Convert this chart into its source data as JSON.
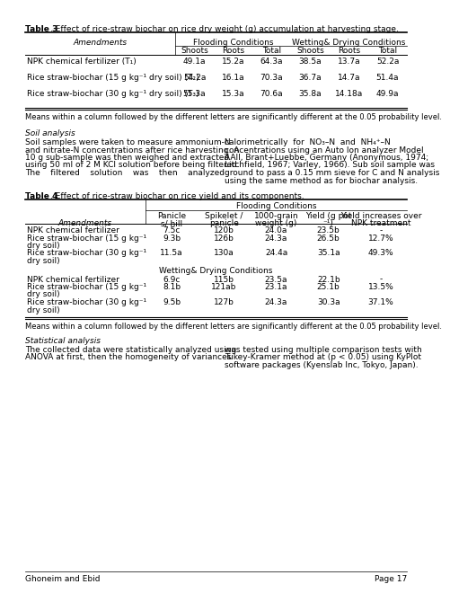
{
  "table3_title_bold": "Table 3",
  "table3_title_rest": ". Effect of rice-straw biochar on rice dry weight (g) accumulation at harvesting stage.",
  "table3_subheaders": [
    "Shoots",
    "Roots",
    "Total",
    "Shoots",
    "Roots",
    "Total"
  ],
  "table3_rows": [
    [
      "NPK chemical fertilizer (T₁)",
      "49.1a",
      "15.2a",
      "64.3a",
      "38.5a",
      "13.7a",
      "52.2a"
    ],
    [
      "Rice straw-biochar (15 g kg⁻¹ dry soil) (T₂)",
      "54.2a",
      "16.1a",
      "70.3a",
      "36.7a",
      "14.7a",
      "51.4a"
    ],
    [
      "Rice straw-biochar (30 g kg⁻¹ dry soil) (T₃)",
      "55.3a",
      "15.3a",
      "70.6a",
      "35.8a",
      "14.18a",
      "49.9a"
    ]
  ],
  "table3_note": "Means within a column followed by the different letters are significantly different at the 0.05 probability level.",
  "soil_analysis_title": "Soil analysis",
  "sa_left_lines": [
    "Soil samples were taken to measure ammonium-N",
    "and nitrate-N concentrations after rice harvesting. A",
    "10 g sub-sample was then weighed and extracted",
    "using 50 ml of 2 M KCl solution before being filtered.",
    "The    filtered    solution    was    then    analyzed"
  ],
  "sa_right_lines": [
    "calorimetrically  for  NO₃–N  and  NH₄⁺–N",
    "concentrations using an Auto Ion analyzer Model",
    "AAll, Brant+Luebbe, Germany (Anonymous, 1974;",
    "Litchfield, 1967; Varley, 1966). Sub soil sample was",
    "ground to pass a 0.15 mm sieve for C and N analysis",
    "using the same method as for biochar analysis."
  ],
  "table4_title_bold": "Table 4",
  "table4_title_rest": ". Effect of rice-straw biochar on rice yield and its components.",
  "table4_col_h1": [
    "Panicle",
    "Spikelet /",
    "1000-grain",
    "Yield (g pot",
    "Yield increases over"
  ],
  "table4_col_h2": [
    "s/ hill",
    "panicle",
    "weight (g)",
    "⁻¹)",
    "NPK treatment"
  ],
  "table4_flooding_rows": [
    [
      "NPK chemical fertilizer",
      "7.5c",
      "120b",
      "24.0a",
      "23.5b",
      "-"
    ],
    [
      "Rice straw-biochar (15 g kg⁻¹",
      "9.3b",
      "126b",
      "24.3a",
      "26.5b",
      "12.7%"
    ],
    [
      "dry soil)",
      "",
      "",
      "",
      "",
      ""
    ],
    [
      "Rice straw-biochar (30 g kg⁻¹",
      "11.5a",
      "130a",
      "24.4a",
      "35.1a",
      "49.3%"
    ],
    [
      "dry soil)",
      "",
      "",
      "",
      "",
      ""
    ]
  ],
  "table4_wetting_rows": [
    [
      "NPK chemical fertilizer",
      "6.9c",
      "115b",
      "23.5a",
      "22.1b",
      "-"
    ],
    [
      "Rice straw-biochar (15 g kg⁻¹",
      "8.1b",
      "121ab",
      "23.1a",
      "25.1b",
      "13.5%"
    ],
    [
      "dry soil)",
      "",
      "",
      "",
      "",
      ""
    ],
    [
      "Rice straw-biochar (30 g kg⁻¹",
      "9.5b",
      "127b",
      "24.3a",
      "30.3a",
      "37.1%"
    ],
    [
      "dry soil)",
      "",
      "",
      "",
      "",
      ""
    ]
  ],
  "table4_note": "Means within a column followed by the different letters are significantly different at the 0.05 probability level.",
  "stat_title": "Statistical analysis",
  "stat_left_lines": [
    "The collected data were statistically analyzed using",
    "ANOVA at first, then the homogeneity of variances"
  ],
  "stat_right_lines": [
    "was tested using multiple comparison tests with",
    "Tukey-Kramer method at (p < 0.05) using KyPlot",
    "software packages (Kyenslab Inc, Tokyo, Japan)."
  ],
  "footer_left": "Ghoneim and Ebid",
  "footer_right": "Page 17"
}
